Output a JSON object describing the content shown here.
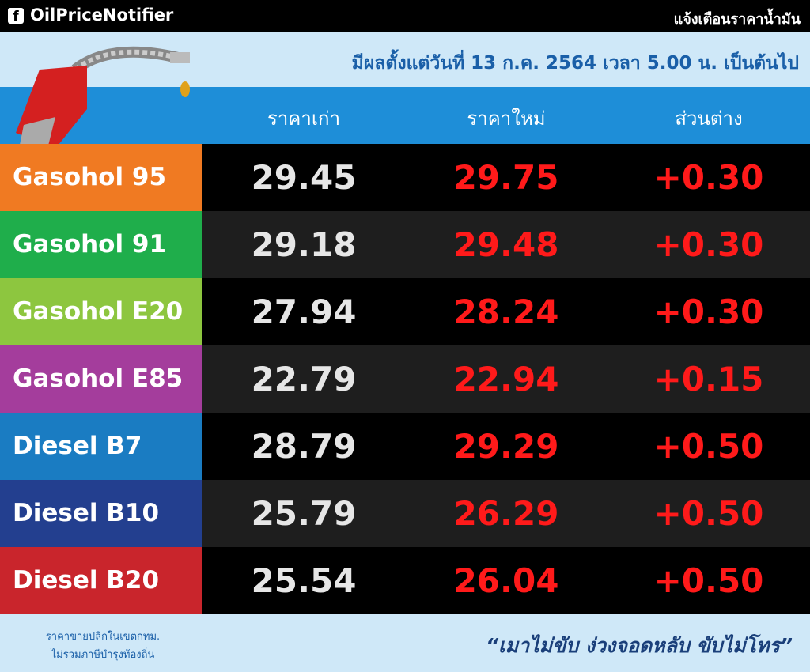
{
  "header": {
    "brand": "OilPriceNotifier",
    "tagline": "แจ้งเตือนราคาน้ำมัน"
  },
  "subtitle": "มีผลตั้งแต่วันที่ 13 ก.ค. 2564 เวลา 5.00 น. เป็นต้นไป",
  "table": {
    "columns": [
      "ราคาเก่า",
      "ราคาใหม่",
      "ส่วนต่าง"
    ],
    "rows": [
      [
        "Gasohol 95",
        "29.45",
        "29.75",
        "+0.30"
      ],
      [
        "Gasohol 91",
        "29.18",
        "29.48",
        "+0.30"
      ],
      [
        "Gasohol E20",
        "27.94",
        "28.24",
        "+0.30"
      ],
      [
        "Gasohol E85",
        "22.79",
        "22.94",
        "+0.15"
      ],
      [
        "Diesel B7",
        "28.79",
        "29.29",
        "+0.50"
      ],
      [
        "Diesel B10",
        "25.79",
        "26.29",
        "+0.50"
      ],
      [
        "Diesel B20",
        "25.54",
        "26.04",
        "+0.50"
      ]
    ]
  },
  "footer": {
    "note": [
      "ราคาขายปลีกในเขตกทม.",
      "ไม่รวมภาษีบำรุงท้องถิ่น"
    ],
    "slogan": "“เมาไม่ขับ ง่วงจอดหลับ ขับไม่โทร”"
  }
}
